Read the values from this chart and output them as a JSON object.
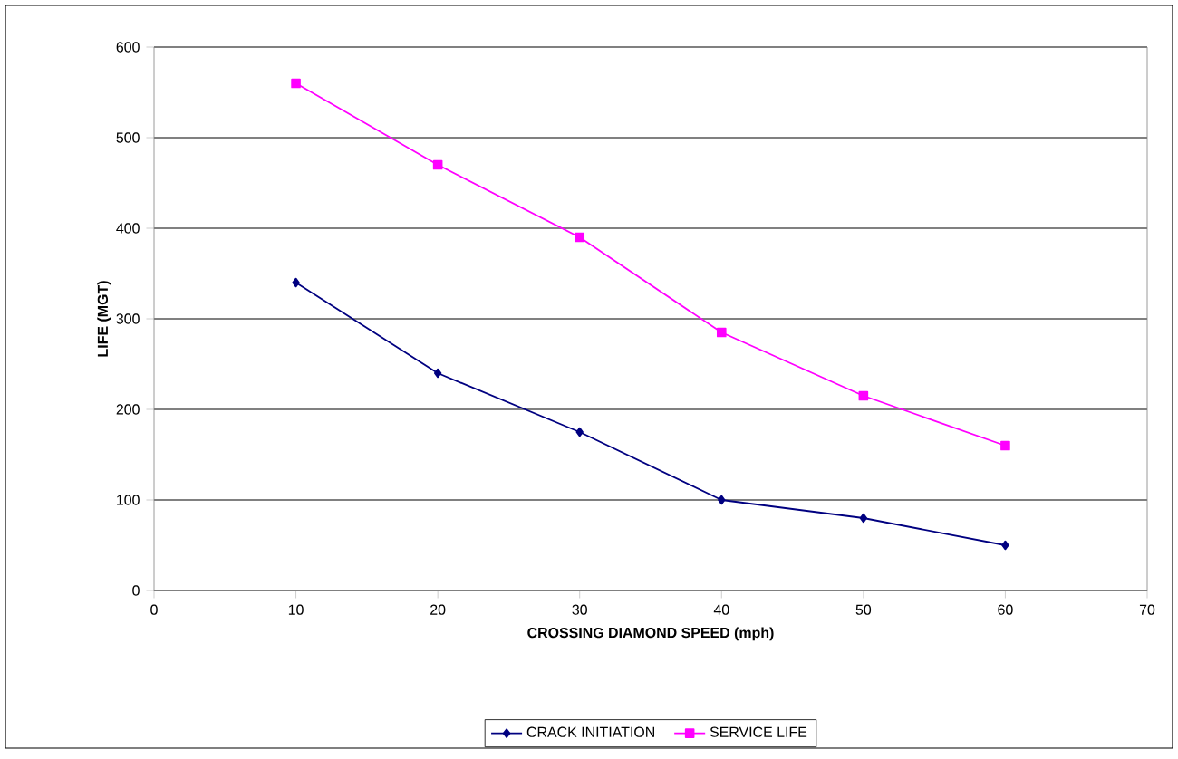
{
  "chart_data": {
    "type": "line",
    "xlabel": "CROSSING DIAMOND SPEED (mph)",
    "ylabel": "LIFE (MGT)",
    "x": [
      10,
      20,
      30,
      40,
      50,
      60
    ],
    "series": [
      {
        "name": "CRACK INITIATION",
        "color": "#000080",
        "marker": "diamond",
        "values": [
          340,
          240,
          175,
          100,
          80,
          50
        ]
      },
      {
        "name": "SERVICE LIFE",
        "color": "#ff00ff",
        "marker": "square",
        "values": [
          560,
          470,
          390,
          285,
          215,
          160
        ]
      }
    ],
    "xlim": [
      0,
      70
    ],
    "xticks": [
      0,
      10,
      20,
      30,
      40,
      50,
      60,
      70
    ],
    "ylim": [
      0,
      600
    ],
    "yticks": [
      0,
      100,
      200,
      300,
      400,
      500,
      600
    ],
    "grid": "y",
    "legend": "bottom",
    "line_style": "solid"
  }
}
